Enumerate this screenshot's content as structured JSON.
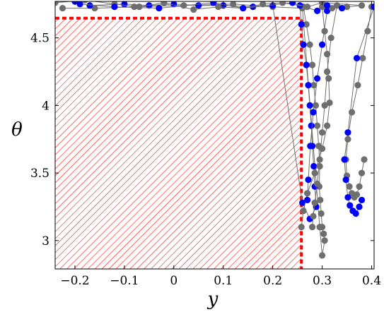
{
  "chart_data": {
    "type": "scatter",
    "xlabel": "y",
    "ylabel": "θ",
    "xlim": [
      -0.24,
      0.405
    ],
    "ylim": [
      2.79,
      4.77
    ],
    "xticks": [
      -0.2,
      -0.1,
      0,
      0.1,
      0.2,
      0.3,
      0.4
    ],
    "xtick_labels": [
      "−0.2",
      "−0.1",
      "0",
      "0.1",
      "0.2",
      "0.3",
      "0.4"
    ],
    "yticks": [
      3,
      3.5,
      4,
      4.5
    ],
    "ytick_labels": [
      "3",
      "3.5",
      "4",
      "4.5"
    ],
    "grid": false,
    "region": {
      "x": [
        -0.24,
        0.258
      ],
      "y": [
        2.79,
        4.646
      ],
      "style": "hatched",
      "color": "#ff0000"
    },
    "colors": {
      "gray": "#6e6e6e",
      "blue": "#0000ff",
      "line": "#6e6e6e"
    },
    "series": [
      {
        "color": "gray",
        "x": [
          0.262,
          0.268,
          0.275,
          0.28,
          0.283,
          0.287,
          0.29,
          0.293,
          0.295,
          0.294,
          0.296,
          0.298,
          0.3,
          0.303,
          0.305,
          0.3,
          0.295,
          0.26,
          0.2,
          0.12,
          0.02,
          -0.08,
          -0.16,
          -0.225
        ],
        "y": [
          4.73,
          4.6,
          4.45,
          4.3,
          4.15,
          4.0,
          3.85,
          3.7,
          3.55,
          3.4,
          3.3,
          3.2,
          3.1,
          3.05,
          3.0,
          2.89,
          3.1,
          4.72,
          4.73,
          4.75,
          4.74,
          4.73,
          4.72,
          4.72
        ]
      },
      {
        "color": "blue",
        "x": [
          0.255,
          0.258,
          0.262,
          0.268,
          0.272,
          0.275,
          0.278,
          0.28,
          0.283,
          0.285,
          0.288,
          0.275,
          0.26,
          0.2,
          0.16,
          0.1,
          0.05,
          0.0,
          -0.05,
          -0.1,
          -0.17,
          -0.235
        ],
        "y": [
          4.74,
          4.6,
          4.45,
          4.3,
          4.15,
          4.0,
          3.85,
          3.7,
          3.55,
          3.4,
          3.25,
          3.16,
          3.28,
          4.74,
          4.73,
          4.74,
          4.74,
          4.75,
          4.74,
          4.75,
          4.74,
          4.79
        ]
      },
      {
        "color": "gray",
        "x": [
          0.3,
          0.305,
          0.31,
          0.313,
          0.315,
          0.31,
          0.3,
          0.285,
          0.27,
          0.262,
          0.258
        ],
        "y": [
          4.73,
          4.55,
          4.38,
          4.2,
          4.02,
          3.85,
          3.68,
          3.5,
          3.35,
          3.22,
          3.1
        ]
      },
      {
        "color": "gray",
        "x": [
          0.4,
          0.392,
          0.382,
          0.372,
          0.36,
          0.352,
          0.348,
          0.35,
          0.355,
          0.36,
          0.365,
          0.37,
          0.375,
          0.38,
          0.385
        ],
        "y": [
          4.73,
          4.55,
          4.35,
          4.15,
          3.95,
          3.75,
          3.6,
          3.48,
          3.4,
          3.35,
          3.32,
          3.34,
          3.4,
          3.5,
          3.6
        ]
      },
      {
        "color": "blue",
        "x": [
          0.405,
          0.37,
          0.352,
          0.345,
          0.348,
          0.352,
          0.356,
          0.362,
          0.368,
          0.375,
          0.38
        ],
        "y": [
          4.73,
          4.35,
          3.8,
          3.6,
          3.45,
          3.32,
          3.26,
          3.22,
          3.2,
          3.25,
          3.3
        ]
      },
      {
        "color": "gray",
        "x": [
          0.33,
          0.318,
          0.31,
          0.305,
          0.3,
          0.295,
          0.29,
          0.285,
          0.282,
          0.28
        ],
        "y": [
          4.74,
          4.5,
          4.25,
          4.0,
          3.8,
          3.6,
          3.42,
          3.28,
          3.18,
          3.1
        ]
      },
      {
        "color": "blue",
        "x": [
          0.31,
          0.3,
          0.29,
          0.282,
          0.276,
          0.272,
          0.27
        ],
        "y": [
          4.7,
          4.45,
          4.2,
          3.95,
          3.7,
          3.45,
          3.3
        ]
      },
      {
        "color": "gray",
        "x": [
          0.32,
          0.35,
          0.38,
          0.3,
          0.27,
          0.22,
          0.18,
          0.14,
          0.09,
          0.04,
          -0.02,
          -0.07,
          -0.12,
          -0.18,
          -0.24
        ],
        "y": [
          4.72,
          4.73,
          4.74,
          4.76,
          4.73,
          4.76,
          4.75,
          4.72,
          4.73,
          4.71,
          4.76,
          4.73,
          4.75,
          4.78,
          4.76
        ]
      },
      {
        "color": "blue",
        "x": [
          0.34,
          0.31,
          0.29,
          0.24,
          0.14,
          0.08,
          -0.03,
          -0.12,
          -0.19,
          -0.2
        ],
        "y": [
          4.72,
          4.74,
          4.7,
          4.76,
          4.72,
          4.76,
          4.72,
          4.73,
          4.75,
          4.77
        ]
      }
    ]
  }
}
